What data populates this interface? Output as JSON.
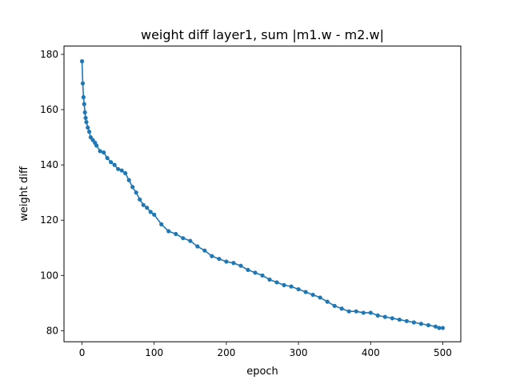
{
  "chart_data": {
    "type": "line",
    "title": "weight diff layer1, sum |m1.w - m2.w|",
    "xlabel": "epoch",
    "ylabel": "weight diff",
    "xlim": [
      -25,
      525
    ],
    "ylim": [
      76,
      183
    ],
    "xticks": [
      0,
      100,
      200,
      300,
      400,
      500
    ],
    "yticks": [
      80,
      100,
      120,
      140,
      160,
      180
    ],
    "grid": false,
    "legend": "none",
    "series": [
      {
        "color": "#1f77b4",
        "marker": "circle",
        "x": [
          0,
          1,
          2,
          3,
          4,
          5,
          6,
          8,
          10,
          12,
          15,
          18,
          20,
          25,
          30,
          35,
          40,
          45,
          50,
          55,
          60,
          65,
          70,
          75,
          80,
          85,
          90,
          95,
          100,
          110,
          120,
          130,
          140,
          150,
          160,
          170,
          180,
          190,
          200,
          210,
          220,
          230,
          240,
          250,
          260,
          270,
          280,
          290,
          300,
          310,
          320,
          330,
          340,
          350,
          360,
          370,
          380,
          390,
          400,
          410,
          420,
          430,
          440,
          450,
          460,
          470,
          480,
          490,
          495,
          500
        ],
        "y": [
          177.5,
          169.5,
          164.5,
          162,
          159,
          157,
          155.5,
          153.5,
          152,
          150,
          149,
          148,
          147,
          145,
          144.5,
          142.5,
          141,
          140,
          138.5,
          138,
          137,
          134.5,
          132,
          130,
          127.5,
          125.5,
          124.5,
          123,
          122,
          118.5,
          116,
          115,
          113.5,
          112.5,
          110.5,
          109,
          107,
          106,
          105,
          104.5,
          103.5,
          102,
          101,
          100,
          98.5,
          97.5,
          96.5,
          96,
          95,
          94,
          93,
          92,
          90.5,
          89,
          88,
          87,
          87,
          86.5,
          86.5,
          85.5,
          85,
          84.5,
          84,
          83.5,
          83,
          82.5,
          82,
          81.5,
          81,
          81
        ]
      }
    ]
  }
}
